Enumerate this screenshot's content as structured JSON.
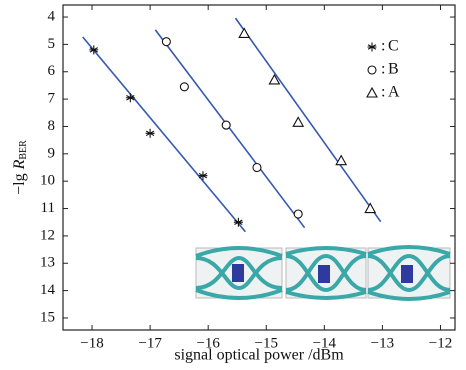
{
  "chart_data": {
    "type": "scatter",
    "xlabel": "signal optical power /dBm",
    "ylabel": {
      "prefix": "−lg ",
      "symbol": "R",
      "subscript": "BER"
    },
    "xlim": [
      -18.5,
      -11.75
    ],
    "ylim": [
      3.56,
      15.44
    ],
    "y_inverted": true,
    "xticks": [
      {
        "value": -18,
        "label": "−18"
      },
      {
        "value": -17,
        "label": "−17"
      },
      {
        "value": -16,
        "label": "−16"
      },
      {
        "value": -15,
        "label": "−15"
      },
      {
        "value": -14,
        "label": "−14"
      },
      {
        "value": -13,
        "label": "−13"
      },
      {
        "value": -12,
        "label": "−12"
      }
    ],
    "yticks": [
      4,
      5,
      6,
      7,
      8,
      9,
      10,
      11,
      12,
      13,
      14,
      15
    ],
    "legend_position": "upper right",
    "legend_separator": ":",
    "fit_color": "#3558b0",
    "series": [
      {
        "name": "C",
        "marker": "asterisk",
        "color": "#111111",
        "x": [
          -17.97,
          -17.34,
          -17.0,
          -16.09,
          -15.48
        ],
        "values": [
          5.2,
          6.95,
          8.25,
          9.8,
          11.5
        ],
        "fit": {
          "x": [
            -18.16,
            -15.36
          ],
          "values": [
            4.73,
            11.85
          ]
        }
      },
      {
        "name": "B",
        "marker": "circle",
        "color": "#111111",
        "x": [
          -16.72,
          -16.41,
          -15.69,
          -15.16,
          -14.45
        ],
        "values": [
          4.9,
          6.55,
          7.95,
          9.5,
          11.2
        ],
        "fit": {
          "x": [
            -16.91,
            -14.34
          ],
          "values": [
            4.47,
            11.7
          ]
        }
      },
      {
        "name": "A",
        "marker": "triangle",
        "color": "#111111",
        "x": [
          -15.38,
          -14.86,
          -14.45,
          -13.71,
          -13.21
        ],
        "values": [
          4.6,
          6.3,
          7.85,
          9.25,
          11.0
        ],
        "fit": {
          "x": [
            -15.53,
            -13.03
          ],
          "values": [
            4.04,
            11.48
          ]
        }
      }
    ]
  }
}
